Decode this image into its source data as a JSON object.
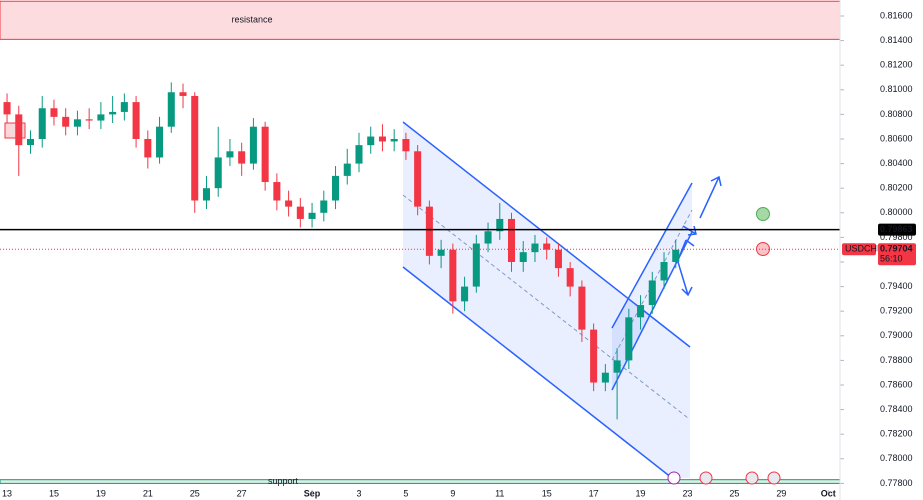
{
  "chart_data": {
    "type": "candlestick",
    "symbol": "USDCHF",
    "countdown": "56:10",
    "last_price": 0.79704,
    "level": 0.79863,
    "zones": [
      {
        "label": "resistance",
        "range": [
          0.8141,
          0.8172
        ]
      },
      {
        "label": "support",
        "range": [
          0.778,
          0.7783
        ]
      }
    ],
    "x": [
      0,
      0.5,
      1,
      1.5,
      2,
      2.5,
      3,
      3.5,
      4,
      4.5,
      5,
      5.5,
      6,
      6.5,
      7,
      7.5,
      8,
      8.5,
      9,
      9.5,
      10,
      10.5,
      11,
      11.5,
      12,
      12.5,
      13,
      13.5,
      14,
      14.5,
      15,
      15.5,
      16,
      16.5,
      17,
      17.5,
      18,
      18.5,
      19,
      19.5,
      20,
      20.5,
      21,
      21.5,
      22,
      22.5,
      23,
      23.5,
      24,
      24.5,
      25,
      25.5,
      26,
      26.5,
      27,
      27.5,
      28,
      28.5
    ],
    "open": [
      0.809,
      0.808,
      0.8055,
      0.806,
      0.8085,
      0.8078,
      0.807,
      0.8076,
      0.8075,
      0.808,
      0.8082,
      0.809,
      0.806,
      0.8045,
      0.807,
      0.8098,
      0.8095,
      0.801,
      0.802,
      0.8045,
      0.805,
      0.804,
      0.807,
      0.8025,
      0.801,
      0.8005,
      0.7995,
      0.8,
      0.801,
      0.803,
      0.804,
      0.8055,
      0.8062,
      0.8058,
      0.806,
      0.805,
      0.8005,
      0.7965,
      0.797,
      0.7928,
      0.794,
      0.7975,
      0.7985,
      0.7995,
      0.796,
      0.7968,
      0.7975,
      0.797,
      0.7955,
      0.794,
      0.7905,
      0.7862,
      0.787,
      0.788,
      0.7915,
      0.7925,
      0.7945,
      0.796
    ],
    "high": [
      0.8097,
      0.8087,
      0.8067,
      0.8095,
      0.8092,
      0.8085,
      0.8083,
      0.8085,
      0.809,
      0.8095,
      0.8097,
      0.8095,
      0.8067,
      0.8078,
      0.8106,
      0.8105,
      0.8098,
      0.803,
      0.807,
      0.806,
      0.8057,
      0.8077,
      0.8074,
      0.8032,
      0.8018,
      0.8012,
      0.8008,
      0.8018,
      0.8038,
      0.8052,
      0.8065,
      0.807,
      0.8072,
      0.8068,
      0.8065,
      0.8055,
      0.801,
      0.7978,
      0.7975,
      0.7948,
      0.7982,
      0.7992,
      0.8008,
      0.8,
      0.7977,
      0.7982,
      0.798,
      0.7975,
      0.796,
      0.7945,
      0.791,
      0.7877,
      0.789,
      0.7922,
      0.7933,
      0.7952,
      0.7968,
      0.7978
    ],
    "low": [
      0.8073,
      0.803,
      0.8048,
      0.8053,
      0.8071,
      0.8063,
      0.8063,
      0.8068,
      0.8068,
      0.8073,
      0.8075,
      0.8053,
      0.8036,
      0.804,
      0.8065,
      0.8085,
      0.8,
      0.8003,
      0.8013,
      0.8038,
      0.803,
      0.8035,
      0.8018,
      0.8002,
      0.7997,
      0.7988,
      0.7988,
      0.7993,
      0.8003,
      0.8023,
      0.8033,
      0.8048,
      0.805,
      0.805,
      0.8043,
      0.7998,
      0.7958,
      0.7955,
      0.7918,
      0.792,
      0.7935,
      0.7968,
      0.7978,
      0.7952,
      0.7952,
      0.796,
      0.7962,
      0.7948,
      0.7932,
      0.7895,
      0.7855,
      0.7855,
      0.7832,
      0.7873,
      0.7905,
      0.7918,
      0.7938,
      0.7955
    ],
    "close": [
      0.808,
      0.8055,
      0.806,
      0.8085,
      0.8078,
      0.807,
      0.8076,
      0.8075,
      0.808,
      0.8082,
      0.809,
      0.806,
      0.8045,
      0.807,
      0.8098,
      0.8095,
      0.801,
      0.802,
      0.8045,
      0.805,
      0.804,
      0.807,
      0.8025,
      0.801,
      0.8005,
      0.7995,
      0.8,
      0.801,
      0.803,
      0.804,
      0.8055,
      0.8062,
      0.8058,
      0.806,
      0.805,
      0.8005,
      0.7965,
      0.797,
      0.7928,
      0.794,
      0.7975,
      0.7985,
      0.7995,
      0.796,
      0.7968,
      0.7975,
      0.797,
      0.7955,
      0.794,
      0.7905,
      0.7862,
      0.787,
      0.788,
      0.7915,
      0.7925,
      0.7945,
      0.796,
      0.797
    ],
    "up_color": "#089981",
    "down_color": "#f23645",
    "xlim": [
      -0.3,
      35.5
    ],
    "xticks": [
      {
        "value": 0,
        "label": "13"
      },
      {
        "value": 2,
        "label": "15"
      },
      {
        "value": 4,
        "label": "19"
      },
      {
        "value": 6,
        "label": "21"
      },
      {
        "value": 8,
        "label": "25"
      },
      {
        "value": 10,
        "label": "27"
      },
      {
        "value": 13,
        "label": "Sep"
      },
      {
        "value": 15,
        "label": "3"
      },
      {
        "value": 17,
        "label": "5"
      },
      {
        "value": 19,
        "label": "9"
      },
      {
        "value": 21,
        "label": "11"
      },
      {
        "value": 23,
        "label": "15"
      },
      {
        "value": 25,
        "label": "17"
      },
      {
        "value": 27,
        "label": "19"
      },
      {
        "value": 29,
        "label": "23"
      },
      {
        "value": 31,
        "label": "25"
      },
      {
        "value": 33,
        "label": "29"
      },
      {
        "value": 35,
        "label": "Oct"
      }
    ],
    "ylim": [
      0.7773,
      0.8173
    ],
    "yticks": [
      {
        "value": 0.816,
        "label": "0.81600"
      },
      {
        "value": 0.814,
        "label": "0.81400"
      },
      {
        "value": 0.812,
        "label": "0.81200"
      },
      {
        "value": 0.81,
        "label": "0.81000"
      },
      {
        "value": 0.808,
        "label": "0.80800"
      },
      {
        "value": 0.806,
        "label": "0.80600"
      },
      {
        "value": 0.804,
        "label": "0.80400"
      },
      {
        "value": 0.802,
        "label": "0.80200"
      },
      {
        "value": 0.8,
        "label": "0.80000"
      },
      {
        "value": 0.798,
        "label": "0.79800"
      },
      {
        "value": 0.796,
        "label": "0.79600"
      },
      {
        "value": 0.794,
        "label": "0.79400"
      },
      {
        "value": 0.792,
        "label": "0.79200"
      },
      {
        "value": 0.79,
        "label": "0.79000"
      },
      {
        "value": 0.788,
        "label": "0.78800"
      },
      {
        "value": 0.786,
        "label": "0.78600"
      },
      {
        "value": 0.784,
        "label": "0.78400"
      },
      {
        "value": 0.782,
        "label": "0.78200"
      },
      {
        "value": 0.78,
        "label": "0.78000"
      },
      {
        "value": 0.778,
        "label": "0.77800"
      }
    ]
  }
}
